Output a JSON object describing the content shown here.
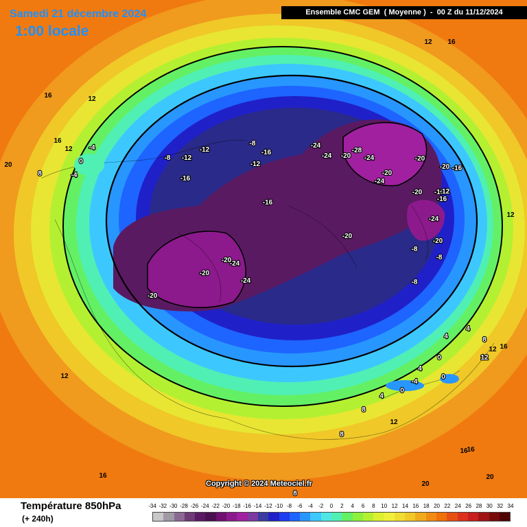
{
  "header": {
    "date": "Samedi 21 décembre 2024",
    "local_time": "1:00 locale",
    "run_info": "Ensemble CMC GEM  ( Moyenne )  -  00 Z du 11/12/2024"
  },
  "footer": {
    "variable": "Température 850hPa",
    "lead_time": "(+ 240h)"
  },
  "copyright": "Copyright © 2024 Meteociel.fr",
  "legend": {
    "ticks": [
      "-34",
      "-32",
      "-30",
      "-28",
      "-26",
      "-24",
      "-22",
      "-20",
      "-18",
      "-16",
      "-14",
      "-12",
      "-10",
      "-8",
      "-6",
      "-4",
      "-2",
      "0",
      "2",
      "4",
      "6",
      "8",
      "10",
      "12",
      "14",
      "16",
      "18",
      "20",
      "22",
      "24",
      "26",
      "28",
      "30",
      "32",
      "34"
    ],
    "colors": [
      "#c8c8c8",
      "#a09aa4",
      "#8a6a92",
      "#6e3a78",
      "#5a1a62",
      "#4a1050",
      "#701070",
      "#8c1a8c",
      "#a020a0",
      "#7a3aa0",
      "#3a3aa0",
      "#2020c8",
      "#1e3cf0",
      "#1e64ff",
      "#2896ff",
      "#3cc8ff",
      "#50e6e6",
      "#50f0b4",
      "#64f064",
      "#8cf03c",
      "#b4f032",
      "#dcf032",
      "#f0f03c",
      "#f0dc32",
      "#f0c828",
      "#f0aa1e",
      "#f08c14",
      "#f0700a",
      "#e65014",
      "#dc321e",
      "#c81e1e",
      "#a01414",
      "#780a0a",
      "#500505"
    ]
  },
  "map_labels": [
    {
      "t": "12",
      "c": "dark"
    },
    {
      "t": "16",
      "c": "dark"
    },
    {
      "t": "16",
      "c": "dark"
    },
    {
      "t": "12",
      "c": "dark"
    },
    {
      "t": "20",
      "c": "dark"
    },
    {
      "t": "16",
      "c": "dark"
    },
    {
      "t": "12",
      "c": "dark"
    },
    {
      "t": "8",
      "c": "light"
    },
    {
      "t": "-4",
      "c": "light"
    },
    {
      "t": "0",
      "c": "light"
    },
    {
      "t": "-4",
      "c": "light"
    },
    {
      "t": "-8",
      "c": "light"
    },
    {
      "t": "-12",
      "c": "light"
    },
    {
      "t": "-12",
      "c": "light"
    },
    {
      "t": "-16",
      "c": "light"
    },
    {
      "t": "-16",
      "c": "light"
    },
    {
      "t": "-8",
      "c": "light"
    },
    {
      "t": "-12",
      "c": "light"
    },
    {
      "t": "-16",
      "c": "light"
    },
    {
      "t": "-24",
      "c": "light"
    },
    {
      "t": "-24",
      "c": "light"
    },
    {
      "t": "-20",
      "c": "light"
    },
    {
      "t": "-28",
      "c": "light"
    },
    {
      "t": "-24",
      "c": "light"
    },
    {
      "t": "-20",
      "c": "light"
    },
    {
      "t": "-24",
      "c": "light"
    },
    {
      "t": "-20",
      "c": "light"
    },
    {
      "t": "-20",
      "c": "light"
    },
    {
      "t": "-16",
      "c": "light"
    },
    {
      "t": "-12",
      "c": "light"
    },
    {
      "t": "-16",
      "c": "light"
    },
    {
      "t": "-20",
      "c": "light"
    },
    {
      "t": "-24",
      "c": "light"
    },
    {
      "t": "-20",
      "c": "light"
    },
    {
      "t": "-8",
      "c": "light"
    },
    {
      "t": "-8",
      "c": "light"
    },
    {
      "t": "-8",
      "c": "light"
    },
    {
      "t": "-20",
      "c": "light"
    },
    {
      "t": "-20",
      "c": "light"
    },
    {
      "t": "-20",
      "c": "light"
    },
    {
      "t": "-24",
      "c": "light"
    },
    {
      "t": "-24",
      "c": "light"
    },
    {
      "t": "-20",
      "c": "light"
    },
    {
      "t": "-16",
      "c": "light"
    },
    {
      "t": "4",
      "c": "light"
    },
    {
      "t": "0",
      "c": "light"
    },
    {
      "t": "8",
      "c": "light"
    },
    {
      "t": "12",
      "c": "light"
    },
    {
      "t": "16",
      "c": "dark"
    },
    {
      "t": "4",
      "c": "light"
    },
    {
      "t": "-4",
      "c": "light"
    },
    {
      "t": "0",
      "c": "light"
    },
    {
      "t": "0",
      "c": "light"
    },
    {
      "t": "4",
      "c": "light"
    },
    {
      "t": "8",
      "c": "light"
    },
    {
      "t": "12",
      "c": "dark"
    },
    {
      "t": "8",
      "c": "light"
    },
    {
      "t": "16",
      "c": "dark"
    },
    {
      "t": "16",
      "c": "dark"
    },
    {
      "t": "20",
      "c": "dark"
    },
    {
      "t": "20",
      "c": "dark"
    },
    {
      "t": "8",
      "c": "light"
    },
    {
      "t": "12",
      "c": "dark"
    },
    {
      "t": "16",
      "c": "dark"
    },
    {
      "t": "4",
      "c": "light"
    },
    {
      "t": "12",
      "c": "dark"
    },
    {
      "t": "12",
      "c": "dark"
    }
  ]
}
